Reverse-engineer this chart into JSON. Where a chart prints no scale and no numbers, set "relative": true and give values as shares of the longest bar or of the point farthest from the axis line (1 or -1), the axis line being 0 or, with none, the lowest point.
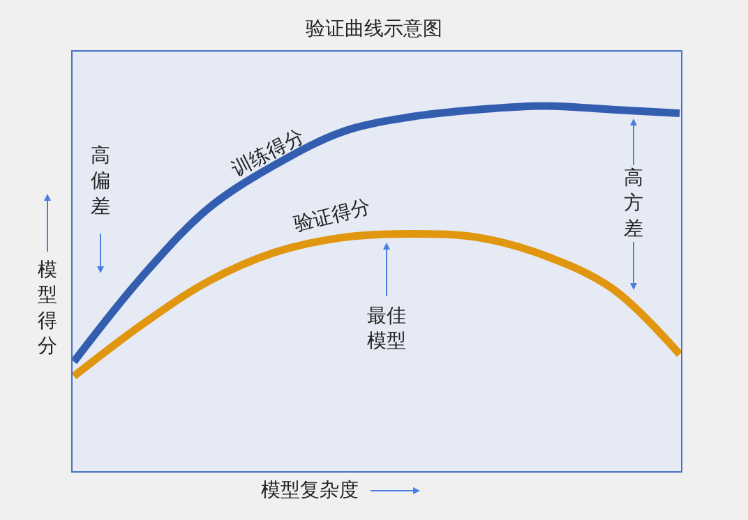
{
  "chart_data": {
    "type": "line",
    "title": "验证曲线示意图",
    "xlabel": "模型复杂度",
    "ylabel": "模型得分",
    "relative": true,
    "grid": false,
    "legend": false,
    "marker": "none",
    "line_style": "solid",
    "categories": [
      null,
      null,
      null,
      null,
      null,
      null,
      null,
      null,
      null,
      null
    ],
    "series": [
      {
        "name": "训练得分",
        "color": "#335eb0",
        "values": [
          0.3,
          0.53,
          0.72,
          0.84,
          0.93,
          0.97,
          0.99,
          1.0,
          0.99,
          0.98
        ]
      },
      {
        "name": "验证得分",
        "color": "#e0960e",
        "values": [
          0.26,
          0.4,
          0.52,
          0.6,
          0.64,
          0.65,
          0.64,
          0.59,
          0.5,
          0.32
        ]
      }
    ],
    "annotations": [
      "高偏差",
      "高方差",
      "最佳模型"
    ]
  }
}
